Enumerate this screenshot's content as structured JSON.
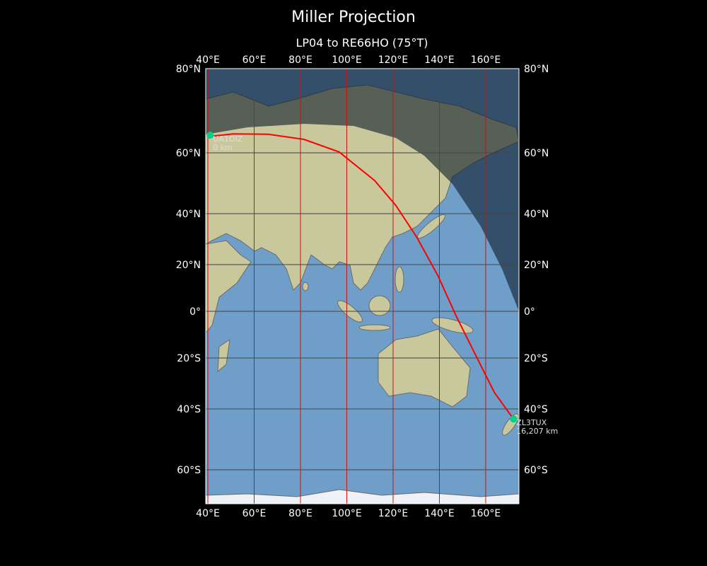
{
  "title": "Miller Projection",
  "subtitle": "LP04 to RE66HO (75°T)",
  "map": {
    "projection": "Miller",
    "extent": {
      "lon": [
        39,
        175
      ],
      "lat": [
        -72,
        80
      ]
    },
    "lon_ticks": [
      {
        "v": 40,
        "label": "40°E"
      },
      {
        "v": 60,
        "label": "60°E"
      },
      {
        "v": 80,
        "label": "80°E"
      },
      {
        "v": 100,
        "label": "100°E"
      },
      {
        "v": 120,
        "label": "120°E"
      },
      {
        "v": 140,
        "label": "140°E"
      },
      {
        "v": 160,
        "label": "160°E"
      }
    ],
    "lat_ticks": [
      {
        "v": 80,
        "label": "80°N"
      },
      {
        "v": 60,
        "label": "60°N"
      },
      {
        "v": 40,
        "label": "40°N"
      },
      {
        "v": 20,
        "label": "20°N"
      },
      {
        "v": 0,
        "label": "0°"
      },
      {
        "v": -20,
        "label": "20°S"
      },
      {
        "v": -40,
        "label": "40°S"
      },
      {
        "v": -60,
        "label": "60°S"
      }
    ],
    "path_color": "#ff0000",
    "station_color": "#00d08a",
    "night_shading": true,
    "great_circle_path": [
      [
        40.9,
        63.9
      ],
      [
        51,
        64.5
      ],
      [
        66.2,
        64.4
      ],
      [
        81.5,
        63.2
      ],
      [
        96.7,
        60.2
      ],
      [
        112,
        50.9
      ],
      [
        121.1,
        42.8
      ],
      [
        130.2,
        30.8
      ],
      [
        139.4,
        15.2
      ],
      [
        147,
        -1.5
      ],
      [
        154.6,
        -16.7
      ],
      [
        163.8,
        -33.6
      ],
      [
        172,
        -43.3
      ]
    ],
    "stations": [
      {
        "call": "UA1OIZ",
        "distance": "0 km",
        "lon": 41,
        "lat": 64.2
      },
      {
        "call": "ZL3TUX",
        "distance": "16,207 km",
        "lon": 172,
        "lat": -43.3
      }
    ]
  }
}
